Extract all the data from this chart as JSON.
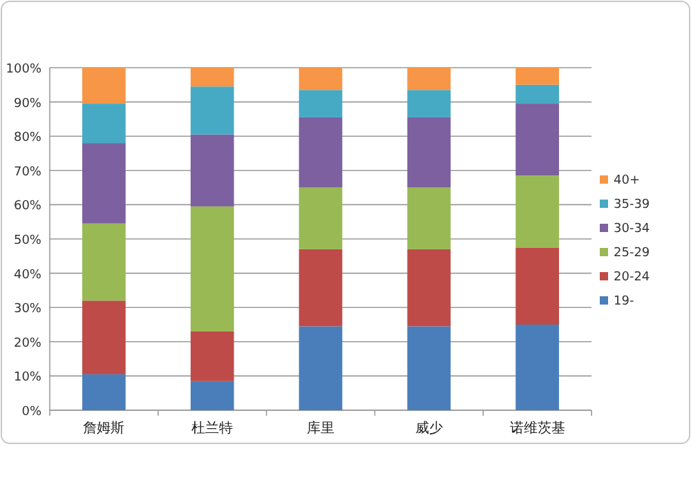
{
  "chart_data": {
    "type": "bar",
    "stacked": true,
    "categories": [
      "詹姆斯",
      "杜兰特",
      "库里",
      "威少",
      "诺维茨基"
    ],
    "series": [
      {
        "name": "19-",
        "color": "#4a7ebb",
        "values": [
          10.5,
          8.5,
          24.5,
          24.5,
          25
        ]
      },
      {
        "name": "20-24",
        "color": "#be4b48",
        "values": [
          21.5,
          14.5,
          22.5,
          22.5,
          22.5
        ]
      },
      {
        "name": "25-29",
        "color": "#98b954",
        "values": [
          22.5,
          36.5,
          18,
          18,
          21
        ]
      },
      {
        "name": "30-34",
        "color": "#7d60a0",
        "values": [
          23.5,
          21,
          20.5,
          20.5,
          21
        ]
      },
      {
        "name": "35-39",
        "color": "#46aac5",
        "values": [
          11.5,
          14,
          8,
          8,
          5.5
        ]
      },
      {
        "name": "40+",
        "color": "#f79646",
        "values": [
          10.5,
          5.5,
          6.5,
          6.5,
          5
        ]
      }
    ],
    "ylim": [
      0,
      100
    ],
    "yticks": [
      {
        "value": 0,
        "label": "0%"
      },
      {
        "value": 10,
        "label": "10%"
      },
      {
        "value": 20,
        "label": "20%"
      },
      {
        "value": 30,
        "label": "30%"
      },
      {
        "value": 40,
        "label": "40%"
      },
      {
        "value": 50,
        "label": "50%"
      },
      {
        "value": 60,
        "label": "60%"
      },
      {
        "value": 70,
        "label": "70%"
      },
      {
        "value": 80,
        "label": "80%"
      },
      {
        "value": 90,
        "label": "90%"
      },
      {
        "value": 100,
        "label": "100%"
      }
    ],
    "grid": "y",
    "legend": "right"
  }
}
